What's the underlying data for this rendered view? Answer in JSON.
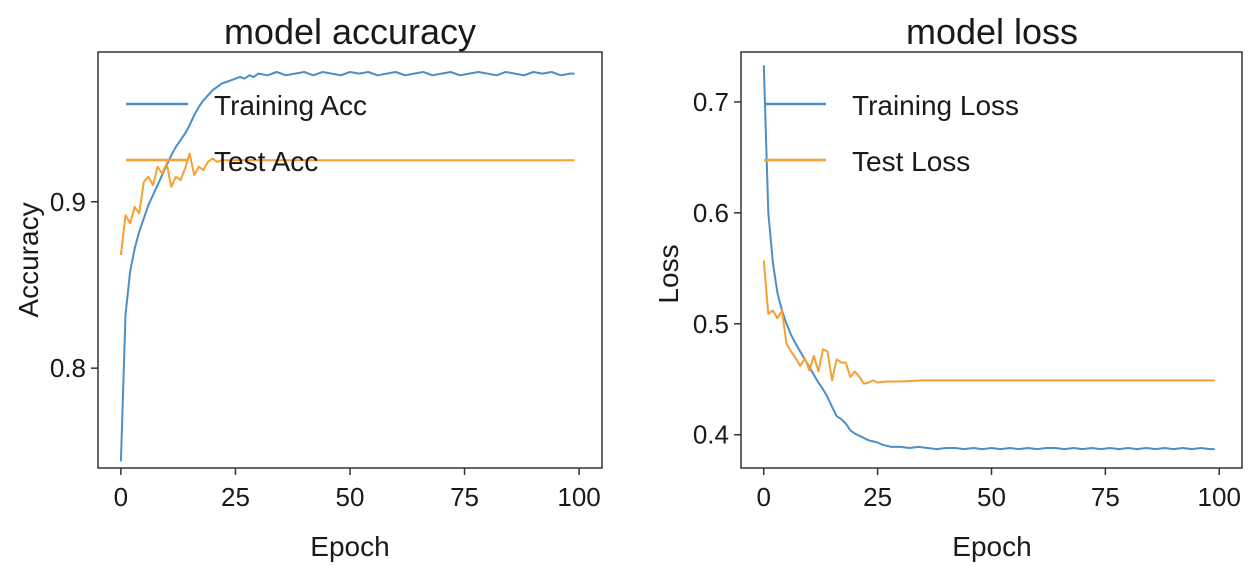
{
  "chart_data": [
    {
      "type": "line",
      "title": "model accuracy",
      "xlabel": "Epoch",
      "ylabel": "Accuracy",
      "xlim": [
        -5,
        105
      ],
      "ylim": [
        0.74,
        0.99
      ],
      "xticks": [
        0,
        25,
        50,
        75,
        100
      ],
      "xtick_labels": [
        "0",
        "25",
        "50",
        "75",
        "100"
      ],
      "yticks": [
        0.8,
        0.9
      ],
      "ytick_labels": [
        "0.8",
        "0.9"
      ],
      "legend_position": "upper-left",
      "grid": false,
      "series": [
        {
          "name": "Training Acc",
          "color": "#4c8fc4",
          "x": [
            0,
            1,
            2,
            3,
            4,
            5,
            6,
            7,
            8,
            9,
            10,
            11,
            12,
            13,
            14,
            15,
            16,
            17,
            18,
            19,
            20,
            21,
            22,
            23,
            24,
            25,
            26,
            27,
            28,
            29,
            30,
            32,
            34,
            36,
            38,
            40,
            42,
            44,
            46,
            48,
            50,
            52,
            54,
            56,
            58,
            60,
            62,
            64,
            66,
            68,
            70,
            72,
            74,
            76,
            78,
            80,
            82,
            84,
            86,
            88,
            90,
            92,
            94,
            96,
            98,
            99
          ],
          "y": [
            0.744,
            0.832,
            0.858,
            0.872,
            0.882,
            0.89,
            0.898,
            0.904,
            0.91,
            0.916,
            0.922,
            0.928,
            0.933,
            0.937,
            0.941,
            0.946,
            0.952,
            0.957,
            0.961,
            0.964,
            0.967,
            0.969,
            0.971,
            0.972,
            0.973,
            0.974,
            0.975,
            0.974,
            0.976,
            0.975,
            0.977,
            0.976,
            0.978,
            0.976,
            0.977,
            0.978,
            0.976,
            0.978,
            0.977,
            0.976,
            0.978,
            0.977,
            0.978,
            0.976,
            0.977,
            0.978,
            0.976,
            0.977,
            0.978,
            0.976,
            0.977,
            0.978,
            0.976,
            0.977,
            0.978,
            0.977,
            0.976,
            0.978,
            0.977,
            0.976,
            0.978,
            0.977,
            0.978,
            0.976,
            0.977,
            0.977
          ]
        },
        {
          "name": "Test Acc",
          "color": "#f5a030",
          "x": [
            0,
            1,
            2,
            3,
            4,
            5,
            6,
            7,
            8,
            9,
            10,
            11,
            12,
            13,
            14,
            15,
            16,
            17,
            18,
            19,
            20,
            21,
            22,
            23,
            24,
            25,
            30,
            40,
            50,
            60,
            70,
            80,
            90,
            99
          ],
          "y": [
            0.868,
            0.892,
            0.887,
            0.897,
            0.893,
            0.912,
            0.915,
            0.91,
            0.921,
            0.917,
            0.923,
            0.909,
            0.915,
            0.913,
            0.92,
            0.929,
            0.916,
            0.921,
            0.919,
            0.924,
            0.926,
            0.924,
            0.925,
            0.925,
            0.925,
            0.925,
            0.925,
            0.925,
            0.925,
            0.925,
            0.925,
            0.925,
            0.925,
            0.925
          ]
        }
      ]
    },
    {
      "type": "line",
      "title": "model loss",
      "xlabel": "Epoch",
      "ylabel": "Loss",
      "xlim": [
        -5,
        105
      ],
      "ylim": [
        0.37,
        0.745
      ],
      "xticks": [
        0,
        25,
        50,
        75,
        100
      ],
      "xtick_labels": [
        "0",
        "25",
        "50",
        "75",
        "100"
      ],
      "yticks": [
        0.4,
        0.5,
        0.6,
        0.7
      ],
      "ytick_labels": [
        "0.4",
        "0.5",
        "0.6",
        "0.7"
      ],
      "legend_position": "upper-right",
      "grid": false,
      "series": [
        {
          "name": "Training Loss",
          "color": "#4c8fc4",
          "x": [
            0,
            1,
            2,
            3,
            4,
            5,
            6,
            7,
            8,
            9,
            10,
            11,
            12,
            13,
            14,
            15,
            16,
            17,
            18,
            19,
            20,
            21,
            22,
            23,
            24,
            25,
            26,
            27,
            28,
            30,
            32,
            34,
            36,
            38,
            40,
            42,
            44,
            46,
            48,
            50,
            52,
            54,
            56,
            58,
            60,
            62,
            64,
            66,
            68,
            70,
            72,
            74,
            76,
            78,
            80,
            82,
            84,
            86,
            88,
            90,
            92,
            94,
            96,
            98,
            99
          ],
          "y": [
            0.733,
            0.6,
            0.555,
            0.528,
            0.512,
            0.5,
            0.49,
            0.482,
            0.475,
            0.468,
            0.461,
            0.454,
            0.447,
            0.441,
            0.434,
            0.425,
            0.417,
            0.414,
            0.41,
            0.404,
            0.401,
            0.399,
            0.397,
            0.395,
            0.394,
            0.393,
            0.391,
            0.39,
            0.389,
            0.389,
            0.388,
            0.389,
            0.388,
            0.387,
            0.388,
            0.388,
            0.387,
            0.388,
            0.387,
            0.388,
            0.387,
            0.388,
            0.387,
            0.388,
            0.387,
            0.388,
            0.388,
            0.387,
            0.388,
            0.387,
            0.388,
            0.387,
            0.388,
            0.387,
            0.388,
            0.387,
            0.388,
            0.387,
            0.388,
            0.387,
            0.388,
            0.387,
            0.388,
            0.387,
            0.387
          ]
        },
        {
          "name": "Test Loss",
          "color": "#f5a030",
          "x": [
            0,
            1,
            2,
            3,
            4,
            5,
            6,
            7,
            8,
            9,
            10,
            11,
            12,
            13,
            14,
            15,
            16,
            17,
            18,
            19,
            20,
            21,
            22,
            23,
            24,
            25,
            27,
            30,
            35,
            40,
            50,
            60,
            70,
            80,
            90,
            99
          ],
          "y": [
            0.557,
            0.509,
            0.512,
            0.505,
            0.512,
            0.482,
            0.475,
            0.469,
            0.462,
            0.469,
            0.458,
            0.471,
            0.457,
            0.477,
            0.475,
            0.449,
            0.468,
            0.465,
            0.465,
            0.452,
            0.457,
            0.452,
            0.446,
            0.447,
            0.449,
            0.447,
            0.448,
            0.448,
            0.449,
            0.449,
            0.449,
            0.449,
            0.449,
            0.449,
            0.449,
            0.449
          ]
        }
      ]
    }
  ]
}
